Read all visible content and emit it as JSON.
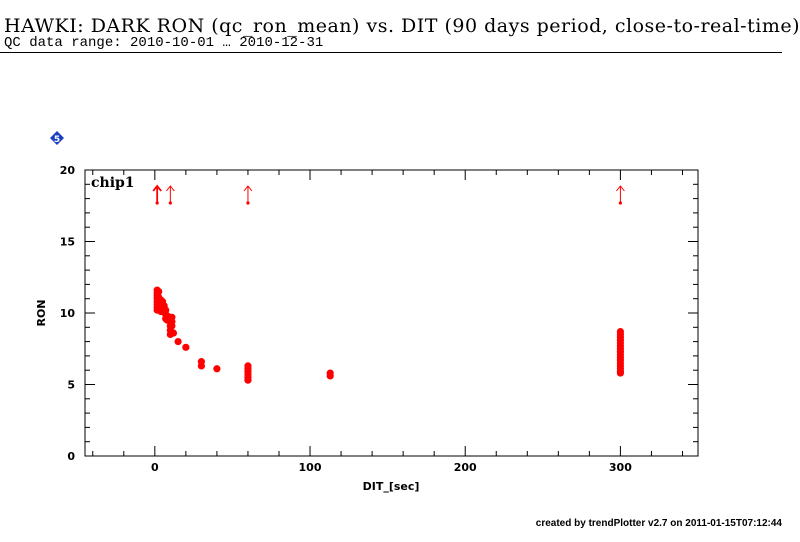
{
  "header": {
    "title": "HAWKI: DARK RON (qc_ron_mean) vs. DIT (90 days period, close-to-real-time)",
    "subtitle": "QC data range: 2010-10-01 … 2010-12-31"
  },
  "footer": {
    "text": "created by trendPlotter v2.7 on 2011-01-15T07:12:44"
  },
  "badge": {
    "label": "5",
    "color": "#1a3fbf"
  },
  "chart_data": {
    "type": "scatter",
    "panel_label": "chip1",
    "xlabel": "DIT_[sec]",
    "ylabel": "RON",
    "xlim": [
      -45,
      350
    ],
    "ylim": [
      0,
      20
    ],
    "x_ticks": [
      0,
      100,
      200,
      300
    ],
    "y_ticks": [
      0,
      5,
      10,
      15,
      20
    ],
    "color": "#ff0000",
    "series": [
      {
        "points": [
          [
            1.5,
            11.6
          ],
          [
            1.5,
            11.4
          ],
          [
            1.5,
            11.2
          ],
          [
            1.5,
            11.0
          ],
          [
            1.5,
            10.8
          ],
          [
            1.5,
            10.6
          ],
          [
            1.5,
            10.4
          ],
          [
            1.5,
            10.2
          ],
          [
            2.5,
            11.5
          ],
          [
            2.5,
            11.1
          ],
          [
            2.5,
            10.7
          ],
          [
            2.5,
            10.3
          ],
          [
            4,
            10.9
          ],
          [
            4,
            10.6
          ],
          [
            4,
            10.3
          ],
          [
            4,
            10.1
          ],
          [
            5,
            10.8
          ],
          [
            5,
            10.4
          ],
          [
            5,
            10.1
          ],
          [
            6,
            10.5
          ],
          [
            6,
            10.2
          ],
          [
            7,
            10.2
          ],
          [
            7,
            9.9
          ],
          [
            7,
            9.6
          ],
          [
            8,
            9.8
          ],
          [
            8,
            9.5
          ],
          [
            10,
            9.7
          ],
          [
            10,
            9.4
          ],
          [
            10,
            9.1
          ],
          [
            10,
            8.8
          ],
          [
            10,
            8.5
          ],
          [
            11,
            9.7
          ],
          [
            11,
            9.4
          ],
          [
            11,
            9.1
          ],
          [
            12,
            8.6
          ],
          [
            15,
            8.0
          ],
          [
            20,
            7.6
          ],
          [
            30,
            6.6
          ],
          [
            30,
            6.3
          ],
          [
            40,
            6.1
          ],
          [
            60,
            6.3
          ],
          [
            60,
            6.1
          ],
          [
            60,
            5.9
          ],
          [
            60,
            5.7
          ],
          [
            60,
            5.5
          ],
          [
            60,
            5.3
          ],
          [
            113,
            5.8
          ],
          [
            113,
            5.6
          ],
          [
            300,
            8.7
          ],
          [
            300,
            8.5
          ],
          [
            300,
            8.3
          ],
          [
            300,
            8.1
          ],
          [
            300,
            7.9
          ],
          [
            300,
            7.7
          ],
          [
            300,
            7.5
          ],
          [
            300,
            7.3
          ],
          [
            300,
            7.1
          ],
          [
            300,
            6.9
          ],
          [
            300,
            6.7
          ],
          [
            300,
            6.5
          ],
          [
            300,
            6.3
          ],
          [
            300,
            6.1
          ],
          [
            300,
            5.9
          ],
          [
            300,
            5.8
          ]
        ]
      }
    ],
    "out_of_range_markers": [
      {
        "x": 1.5,
        "style": "thick"
      },
      {
        "x": 10,
        "style": "thin"
      },
      {
        "x": 60,
        "style": "thin"
      },
      {
        "x": 300,
        "style": "thin"
      }
    ]
  }
}
